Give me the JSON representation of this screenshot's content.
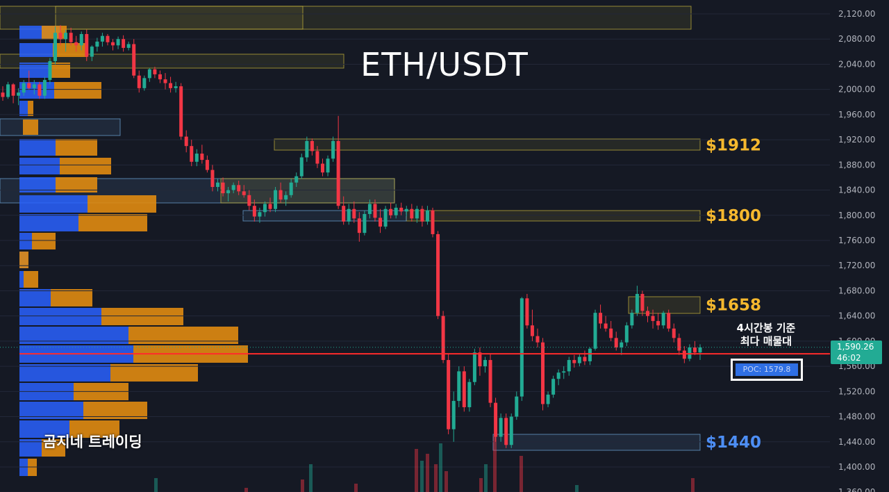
{
  "title": "ETH/USDT",
  "watermark": "곰지네 트레이딩",
  "annotation": {
    "line1": "4시간봉 기준",
    "line2": "최다 매물대"
  },
  "poc_label": "POC: 1579.8",
  "current_price": {
    "price": "1,590.26",
    "countdown": "46:02"
  },
  "colors": {
    "up": "#22ab94",
    "down": "#f23645",
    "gold": "#f5b82e",
    "blue_label": "#4d8ef5",
    "vp_blue": "#2962ff",
    "vp_orange": "#e08b11"
  },
  "chart_data": {
    "type": "candlestick",
    "title": "ETH/USDT",
    "ylim": [
      1360,
      2140
    ],
    "y_ticks": [
      "2,120.00",
      "2,080.00",
      "2,040.00",
      "2,000.00",
      "1,960.00",
      "1,920.00",
      "1,880.00",
      "1,840.00",
      "1,800.00",
      "1,760.00",
      "1,720.00",
      "1,680.00",
      "1,640.00",
      "1,600.00",
      "1,560.00",
      "1,520.00",
      "1,480.00",
      "1,440.00",
      "1,400.00",
      "1,360.00"
    ],
    "levels": [
      {
        "label": "$1912",
        "price": 1912,
        "color": "#f5b82e"
      },
      {
        "label": "$1800",
        "price": 1800,
        "color": "#f5b82e"
      },
      {
        "label": "$1658",
        "price": 1658,
        "color": "#f5b82e"
      },
      {
        "label": "$1440",
        "price": 1440,
        "color": "#4d8ef5"
      }
    ],
    "poc": 1579.8,
    "last_price": 1590.26,
    "candles": [
      [
        1995,
        2005,
        1982,
        1988
      ],
      [
        1988,
        2012,
        1985,
        2008
      ],
      [
        2008,
        2010,
        1978,
        1990
      ],
      [
        1990,
        2002,
        1975,
        1995
      ],
      [
        1995,
        2015,
        1990,
        2010
      ],
      [
        2010,
        2030,
        2000,
        2002
      ],
      [
        2002,
        2015,
        1992,
        2008
      ],
      [
        2008,
        2012,
        1985,
        1990
      ],
      [
        1990,
        2020,
        1985,
        2015
      ],
      [
        2015,
        2050,
        2008,
        2045
      ],
      [
        2045,
        2100,
        2040,
        2090
      ],
      [
        2090,
        2102,
        2070,
        2080
      ],
      [
        2080,
        2095,
        2060,
        2090
      ],
      [
        2090,
        2098,
        2070,
        2075
      ],
      [
        2075,
        2085,
        2060,
        2070
      ],
      [
        2070,
        2092,
        2062,
        2088
      ],
      [
        2088,
        2095,
        2045,
        2052
      ],
      [
        2052,
        2070,
        2045,
        2068
      ],
      [
        2068,
        2082,
        2060,
        2076
      ],
      [
        2076,
        2090,
        2068,
        2085
      ],
      [
        2085,
        2088,
        2070,
        2075
      ],
      [
        2075,
        2080,
        2062,
        2070
      ],
      [
        2070,
        2084,
        2064,
        2080
      ],
      [
        2080,
        2086,
        2060,
        2066
      ],
      [
        2066,
        2076,
        2062,
        2072
      ],
      [
        2072,
        2080,
        2018,
        2022
      ],
      [
        2022,
        2030,
        1995,
        2002
      ],
      [
        2002,
        2022,
        1998,
        2018
      ],
      [
        2018,
        2034,
        2012,
        2032
      ],
      [
        2032,
        2036,
        2018,
        2024
      ],
      [
        2024,
        2030,
        2010,
        2016
      ],
      [
        2016,
        2026,
        2000,
        2010
      ],
      [
        2010,
        2020,
        1995,
        2002
      ],
      [
        2002,
        2012,
        1995,
        2005
      ],
      [
        2005,
        2010,
        1920,
        1925
      ],
      [
        1925,
        1935,
        1900,
        1910
      ],
      [
        1910,
        1920,
        1878,
        1885
      ],
      [
        1885,
        1905,
        1878,
        1898
      ],
      [
        1898,
        1912,
        1882,
        1888
      ],
      [
        1888,
        1895,
        1868,
        1872
      ],
      [
        1872,
        1880,
        1838,
        1845
      ],
      [
        1845,
        1858,
        1838,
        1852
      ],
      [
        1852,
        1860,
        1830,
        1835
      ],
      [
        1835,
        1845,
        1822,
        1840
      ],
      [
        1840,
        1852,
        1835,
        1848
      ],
      [
        1848,
        1855,
        1832,
        1838
      ],
      [
        1838,
        1848,
        1828,
        1832
      ],
      [
        1832,
        1840,
        1808,
        1815
      ],
      [
        1815,
        1825,
        1790,
        1798
      ],
      [
        1798,
        1812,
        1788,
        1805
      ],
      [
        1805,
        1822,
        1798,
        1818
      ],
      [
        1818,
        1828,
        1805,
        1810
      ],
      [
        1810,
        1845,
        1805,
        1840
      ],
      [
        1840,
        1852,
        1820,
        1825
      ],
      [
        1825,
        1838,
        1815,
        1832
      ],
      [
        1832,
        1858,
        1828,
        1852
      ],
      [
        1852,
        1868,
        1845,
        1862
      ],
      [
        1862,
        1898,
        1858,
        1892
      ],
      [
        1892,
        1925,
        1885,
        1918
      ],
      [
        1918,
        1922,
        1895,
        1902
      ],
      [
        1902,
        1910,
        1875,
        1882
      ],
      [
        1882,
        1890,
        1862,
        1868
      ],
      [
        1868,
        1895,
        1862,
        1890
      ],
      [
        1890,
        1925,
        1885,
        1918
      ],
      [
        1918,
        1958,
        1810,
        1815
      ],
      [
        1815,
        1830,
        1785,
        1790
      ],
      [
        1790,
        1818,
        1785,
        1810
      ],
      [
        1810,
        1822,
        1788,
        1795
      ],
      [
        1795,
        1805,
        1758,
        1772
      ],
      [
        1772,
        1808,
        1768,
        1802
      ],
      [
        1802,
        1825,
        1795,
        1818
      ],
      [
        1818,
        1825,
        1790,
        1796
      ],
      [
        1796,
        1810,
        1772,
        1782
      ],
      [
        1782,
        1815,
        1778,
        1810
      ],
      [
        1810,
        1820,
        1795,
        1800
      ],
      [
        1800,
        1818,
        1795,
        1812
      ],
      [
        1812,
        1820,
        1800,
        1806
      ],
      [
        1806,
        1815,
        1798,
        1810
      ],
      [
        1810,
        1818,
        1790,
        1795
      ],
      [
        1795,
        1815,
        1788,
        1810
      ],
      [
        1810,
        1815,
        1782,
        1790
      ],
      [
        1790,
        1815,
        1785,
        1808
      ],
      [
        1808,
        1812,
        1765,
        1770
      ],
      [
        1770,
        1775,
        1635,
        1640
      ],
      [
        1640,
        1648,
        1565,
        1570
      ],
      [
        1570,
        1580,
        1452,
        1460
      ],
      [
        1460,
        1520,
        1440,
        1505
      ],
      [
        1505,
        1560,
        1495,
        1552
      ],
      [
        1552,
        1560,
        1488,
        1495
      ],
      [
        1495,
        1540,
        1488,
        1535
      ],
      [
        1535,
        1588,
        1530,
        1582
      ],
      [
        1582,
        1590,
        1545,
        1560
      ],
      [
        1560,
        1575,
        1550,
        1570
      ],
      [
        1570,
        1580,
        1495,
        1502
      ],
      [
        1502,
        1510,
        1440,
        1448
      ],
      [
        1448,
        1485,
        1440,
        1478
      ],
      [
        1478,
        1485,
        1430,
        1435
      ],
      [
        1435,
        1485,
        1430,
        1480
      ],
      [
        1480,
        1520,
        1475,
        1512
      ],
      [
        1512,
        1670,
        1505,
        1668
      ],
      [
        1668,
        1675,
        1620,
        1625
      ],
      [
        1625,
        1650,
        1600,
        1608
      ],
      [
        1608,
        1620,
        1590,
        1598
      ],
      [
        1598,
        1605,
        1490,
        1500
      ],
      [
        1500,
        1520,
        1495,
        1515
      ],
      [
        1515,
        1545,
        1510,
        1540
      ],
      [
        1540,
        1555,
        1530,
        1550
      ],
      [
        1550,
        1560,
        1540,
        1552
      ],
      [
        1552,
        1575,
        1545,
        1570
      ],
      [
        1570,
        1578,
        1558,
        1565
      ],
      [
        1565,
        1580,
        1560,
        1575
      ],
      [
        1575,
        1585,
        1562,
        1568
      ],
      [
        1568,
        1590,
        1562,
        1588
      ],
      [
        1588,
        1650,
        1585,
        1645
      ],
      [
        1645,
        1658,
        1620,
        1628
      ],
      [
        1628,
        1640,
        1615,
        1620
      ],
      [
        1620,
        1632,
        1600,
        1605
      ],
      [
        1605,
        1615,
        1585,
        1590
      ],
      [
        1590,
        1602,
        1578,
        1598
      ],
      [
        1598,
        1630,
        1592,
        1625
      ],
      [
        1625,
        1650,
        1620,
        1645
      ],
      [
        1645,
        1688,
        1640,
        1675
      ],
      [
        1675,
        1680,
        1640,
        1648
      ],
      [
        1648,
        1655,
        1630,
        1640
      ],
      [
        1640,
        1650,
        1620,
        1632
      ],
      [
        1632,
        1645,
        1618,
        1625
      ],
      [
        1625,
        1648,
        1620,
        1645
      ],
      [
        1645,
        1650,
        1615,
        1620
      ],
      [
        1620,
        1628,
        1598,
        1605
      ],
      [
        1605,
        1612,
        1578,
        1585
      ],
      [
        1585,
        1592,
        1565,
        1572
      ],
      [
        1572,
        1595,
        1568,
        1590
      ],
      [
        1590,
        1600,
        1578,
        1582
      ],
      [
        1582,
        1595,
        1570,
        1590
      ]
    ]
  }
}
